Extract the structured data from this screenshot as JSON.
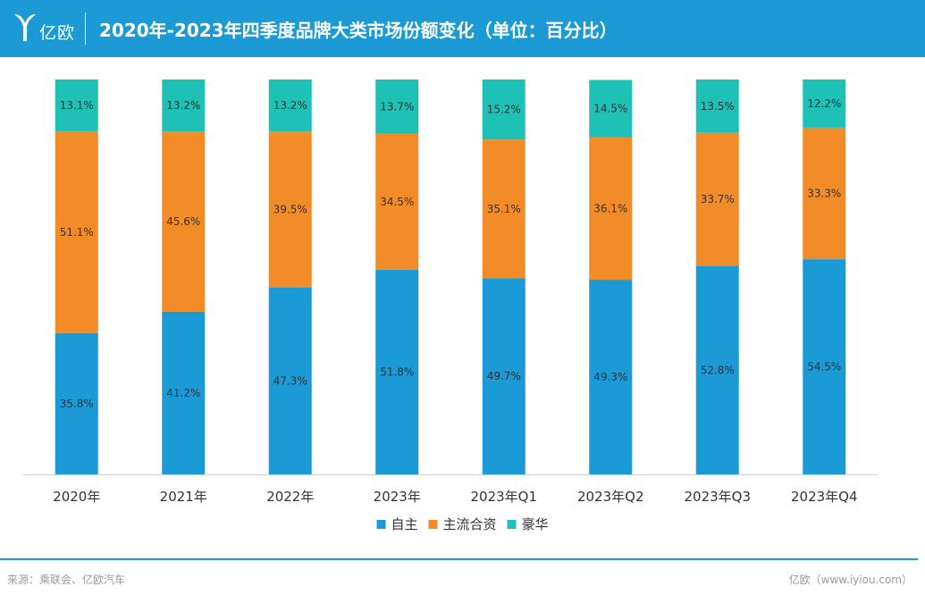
{
  "header": {
    "logo_text": "亿欧",
    "title": "2020年-2023年四季度品牌大类市场份额变化（单位：百分比）"
  },
  "footer": {
    "source": "来源：乘联会、亿欧汽车",
    "brand": "亿欧（www.iyiou.com）"
  },
  "colors": {
    "header_bg": "#1c9ad6",
    "self_brand": "#1c9ad6",
    "mainstream_jv": "#f28c28",
    "luxury": "#1fc0b5"
  },
  "chart_data": {
    "type": "bar",
    "stacked": true,
    "title": "2020年-2023年四季度品牌大类市场份额变化（单位：百分比）",
    "categories": [
      "2020年",
      "2021年",
      "2022年",
      "2023年",
      "2023年Q1",
      "2023年Q2",
      "2023年Q3",
      "2023年Q4"
    ],
    "series": [
      {
        "name": "自主",
        "color": "#1c9ad6",
        "values": [
          35.8,
          41.2,
          47.3,
          51.8,
          49.7,
          49.3,
          52.8,
          54.5
        ]
      },
      {
        "name": "主流合资",
        "color": "#f28c28",
        "values": [
          51.1,
          45.6,
          39.5,
          34.5,
          35.1,
          36.1,
          33.7,
          33.3
        ]
      },
      {
        "name": "豪华",
        "color": "#1fc0b5",
        "values": [
          13.1,
          13.2,
          13.2,
          13.7,
          15.2,
          14.5,
          13.5,
          12.2
        ]
      }
    ],
    "ylim": [
      0,
      100
    ],
    "grid": false,
    "legend": "bottom",
    "value_suffix": "%"
  }
}
